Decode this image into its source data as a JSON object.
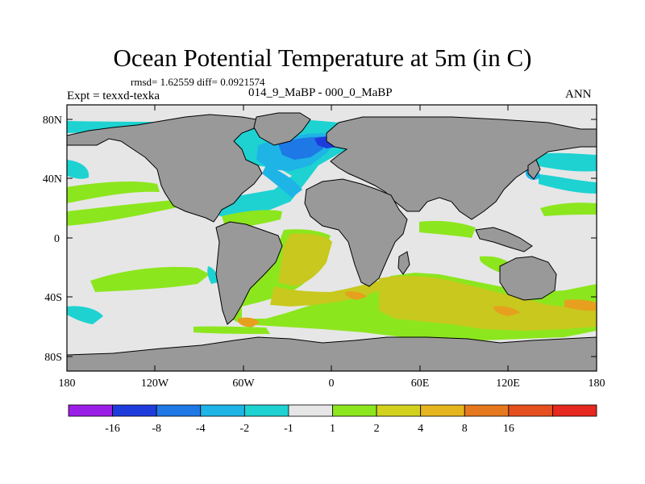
{
  "title": "Ocean Potential Temperature at 5m (in C)",
  "stats": "rmsd= 1.62559 diff= 0.0921574",
  "experiment": "Expt = texxd-texka",
  "subtitle": "014_9_MaBP - 000_0_MaBP",
  "season": "ANN",
  "lat_ticks": [
    "80N",
    "40N",
    "0",
    "40S",
    "80S"
  ],
  "lon_ticks": [
    "180",
    "120W",
    "60W",
    "0",
    "60E",
    "120E",
    "180"
  ],
  "colorbar": {
    "colors": [
      "#9b1ee6",
      "#1e3cdc",
      "#1e78e6",
      "#1eb4e6",
      "#1ed2d2",
      "#e6e6e6",
      "#8ce61e",
      "#d2d21e",
      "#e6b41e",
      "#e6781e",
      "#e6501e",
      "#e6281e"
    ],
    "labels": [
      "-16",
      "-8",
      "-4",
      "-2",
      "-1",
      "1",
      "2",
      "4",
      "8",
      "16"
    ]
  },
  "colors": {
    "land": "#999999",
    "ocean_neutral": "#e6e6e6",
    "warm_light": "#8ce61e",
    "warm_mid": "#c8c81e",
    "warm_orange": "#e6a01e",
    "cool_cyan": "#1ed2d2",
    "cool_light": "#1eb4e6",
    "cool_blue": "#1e78e6",
    "cool_dark": "#1e3cdc"
  }
}
